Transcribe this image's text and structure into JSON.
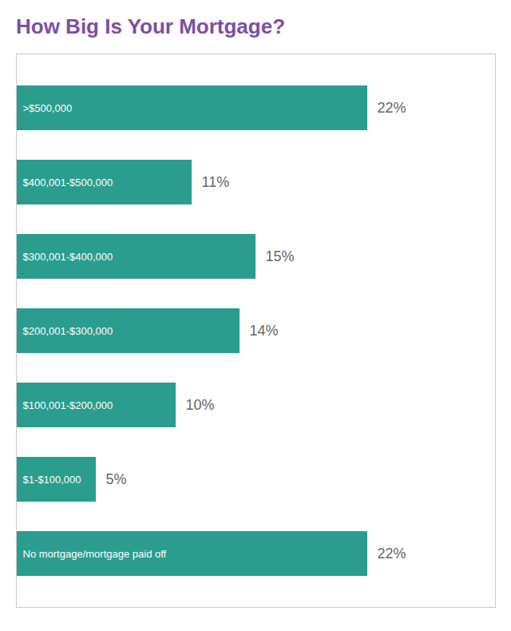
{
  "chart_data": {
    "type": "bar",
    "title": "How Big Is Your Mortgage?",
    "orientation": "horizontal",
    "categories": [
      ">$500,000",
      "$400,001-$500,000",
      "$300,001-$400,000",
      "$200,001-$300,000",
      "$100,001-$200,000",
      "$1-$100,000",
      "No mortgage/mortgage paid off"
    ],
    "values": [
      22,
      11,
      15,
      14,
      10,
      5,
      22
    ],
    "value_labels": [
      "22%",
      "11%",
      "15%",
      "14%",
      "10%",
      "5%",
      "22%"
    ],
    "color": "#2A9D8F",
    "xlim": [
      0,
      30
    ],
    "data_labels": true,
    "tick_labels": false,
    "grid": false
  }
}
